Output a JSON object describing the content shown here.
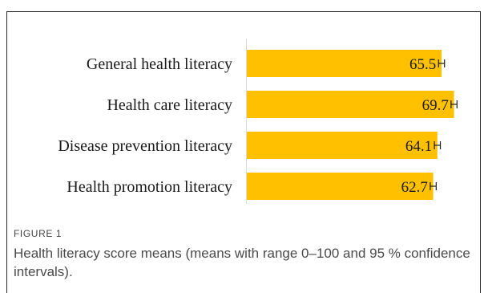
{
  "figure": {
    "label": "FIGURE 1",
    "caption": "Health literacy score means (means with range 0–100 and 95 % confidence intervals)."
  },
  "chart_data": {
    "type": "bar",
    "orientation": "horizontal",
    "categories": [
      "General health literacy",
      "Health care literacy",
      "Disease prevention literacy",
      "Health promotion literacy"
    ],
    "values": [
      65.5,
      69.7,
      64.1,
      62.7
    ],
    "data_labels": [
      "65.5",
      "69.7",
      "64.1",
      "62.7"
    ],
    "error_half_width": [
      1.0,
      1.0,
      1.0,
      1.0
    ],
    "xlim": [
      0,
      100
    ],
    "bar_color": "#FFC000",
    "error_bar_color": "#1a1a1a",
    "grid": false,
    "legend": "none"
  }
}
